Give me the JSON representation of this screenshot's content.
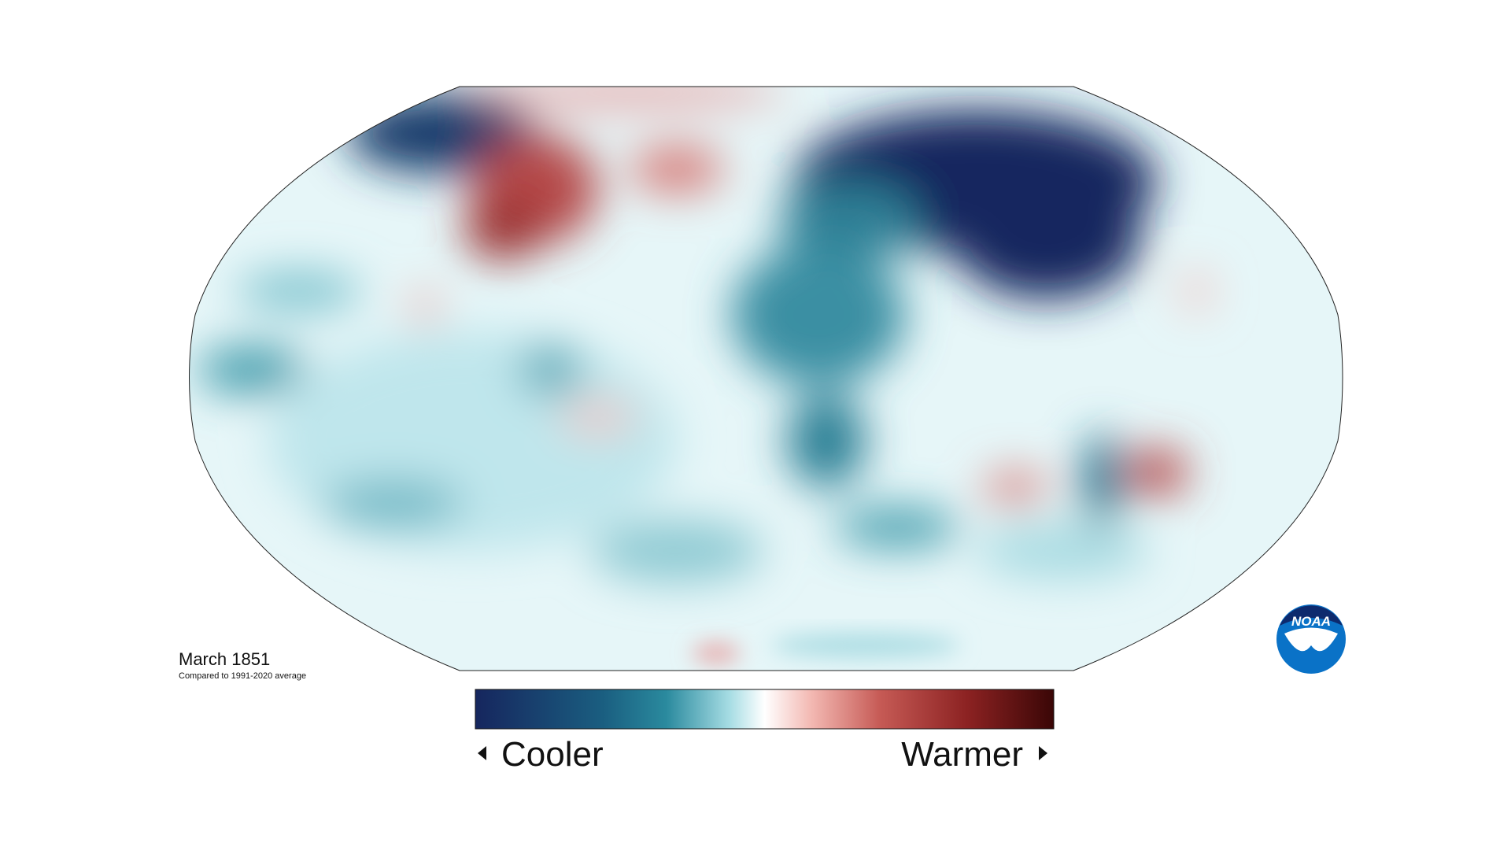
{
  "map": {
    "title": "March 1851",
    "subtitle": "Compared to 1991-2020 average"
  },
  "legend": {
    "low_label": "Cooler",
    "high_label": "Warmer"
  },
  "logo": {
    "text": "NOAA"
  }
}
